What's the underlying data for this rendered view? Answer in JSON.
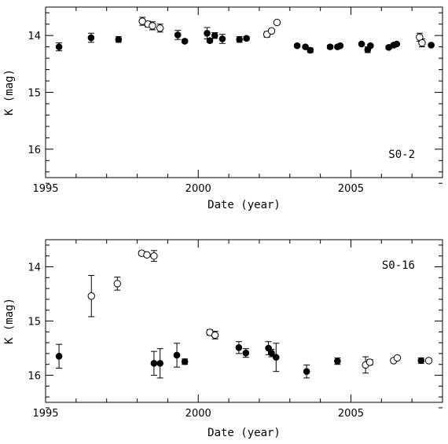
{
  "chart_data": [
    {
      "type": "scatter",
      "star_label": "S0-2",
      "xlabel": "Date (year)",
      "ylabel": "K (mag)",
      "xlim": [
        1995,
        2008
      ],
      "ylim": [
        13.5,
        16.5
      ],
      "y_inverted": true,
      "xticks": [
        1995,
        2000,
        2005
      ],
      "yticks": [
        14,
        15,
        16
      ],
      "series": [
        {
          "marker": "filled",
          "points": [
            {
              "x": 1995.44,
              "y": 14.2,
              "err": 0.07
            },
            {
              "x": 1996.49,
              "y": 14.04,
              "err": 0.08
            },
            {
              "x": 1997.39,
              "y": 14.07,
              "err": 0.05
            },
            {
              "x": 1999.33,
              "y": 13.99,
              "err": 0.08
            },
            {
              "x": 1999.56,
              "y": 14.1,
              "err": 0.03
            },
            {
              "x": 2000.29,
              "y": 13.96,
              "err": 0.1
            },
            {
              "x": 2000.38,
              "y": 14.09,
              "err": 0.03
            },
            {
              "x": 2000.54,
              "y": 14.0,
              "err": 0.05
            },
            {
              "x": 2000.79,
              "y": 14.06,
              "err": 0.08
            },
            {
              "x": 2001.35,
              "y": 14.07,
              "err": 0.05
            },
            {
              "x": 2001.58,
              "y": 14.05,
              "err": 0.03
            },
            {
              "x": 2003.24,
              "y": 14.18,
              "err": 0.02
            },
            {
              "x": 2003.51,
              "y": 14.2,
              "err": 0.02
            },
            {
              "x": 2003.67,
              "y": 14.26,
              "err": 0.04
            },
            {
              "x": 2004.32,
              "y": 14.2,
              "err": 0.03
            },
            {
              "x": 2004.56,
              "y": 14.2,
              "err": 0.02
            },
            {
              "x": 2004.65,
              "y": 14.18,
              "err": 0.02
            },
            {
              "x": 2005.35,
              "y": 14.15,
              "err": 0.02
            },
            {
              "x": 2005.55,
              "y": 14.25,
              "err": 0.05
            },
            {
              "x": 2005.64,
              "y": 14.18,
              "err": 0.02
            },
            {
              "x": 2006.24,
              "y": 14.21,
              "err": 0.03
            },
            {
              "x": 2006.4,
              "y": 14.17,
              "err": 0.03
            },
            {
              "x": 2006.5,
              "y": 14.15,
              "err": 0.02
            },
            {
              "x": 2007.63,
              "y": 14.17,
              "err": 0.02
            }
          ]
        },
        {
          "marker": "open",
          "points": [
            {
              "x": 1998.17,
              "y": 13.75,
              "err": 0.07
            },
            {
              "x": 1998.35,
              "y": 13.8,
              "err": 0.05
            },
            {
              "x": 1998.5,
              "y": 13.83,
              "err": 0.07
            },
            {
              "x": 1998.75,
              "y": 13.87,
              "err": 0.07
            },
            {
              "x": 2002.25,
              "y": 13.98,
              "err": 0.05
            },
            {
              "x": 2002.4,
              "y": 13.92,
              "err": 0.03
            },
            {
              "x": 2002.58,
              "y": 13.77,
              "err": 0.03
            },
            {
              "x": 2007.25,
              "y": 14.03,
              "err": 0.07
            },
            {
              "x": 2007.33,
              "y": 14.13,
              "err": 0.07
            }
          ]
        }
      ]
    },
    {
      "type": "scatter",
      "star_label": "S0-16",
      "xlabel": "Date (year)",
      "ylabel": "K (mag)",
      "xlim": [
        1995,
        2008
      ],
      "ylim": [
        13.5,
        16.5
      ],
      "y_inverted": true,
      "xticks": [
        1995,
        2000,
        2005
      ],
      "yticks": [
        14,
        15,
        16
      ],
      "series": [
        {
          "marker": "filled",
          "points": [
            {
              "x": 1995.44,
              "y": 15.65,
              "err": 0.22
            },
            {
              "x": 1998.55,
              "y": 15.78,
              "err": 0.22
            },
            {
              "x": 1998.75,
              "y": 15.78,
              "err": 0.27
            },
            {
              "x": 1999.3,
              "y": 15.63,
              "err": 0.22
            },
            {
              "x": 1999.56,
              "y": 15.75,
              "err": 0.05
            },
            {
              "x": 2001.33,
              "y": 15.49,
              "err": 0.11
            },
            {
              "x": 2001.56,
              "y": 15.59,
              "err": 0.08
            },
            {
              "x": 2002.3,
              "y": 15.5,
              "err": 0.12
            },
            {
              "x": 2002.4,
              "y": 15.59,
              "err": 0.07
            },
            {
              "x": 2002.55,
              "y": 15.67,
              "err": 0.26
            },
            {
              "x": 2003.55,
              "y": 15.93,
              "err": 0.12
            },
            {
              "x": 2004.56,
              "y": 15.74,
              "err": 0.06
            },
            {
              "x": 2007.3,
              "y": 15.73,
              "err": 0.05
            }
          ]
        },
        {
          "marker": "open",
          "points": [
            {
              "x": 1996.5,
              "y": 14.54,
              "err": 0.38
            },
            {
              "x": 1997.35,
              "y": 14.31,
              "err": 0.12
            },
            {
              "x": 1998.15,
              "y": 13.75,
              "err": 0.04
            },
            {
              "x": 1998.32,
              "y": 13.78,
              "err": 0.03
            },
            {
              "x": 1998.55,
              "y": 13.8,
              "err": 0.1
            },
            {
              "x": 2000.38,
              "y": 15.21,
              "err": 0.05
            },
            {
              "x": 2000.55,
              "y": 15.26,
              "err": 0.07
            },
            {
              "x": 2005.48,
              "y": 15.81,
              "err": 0.15
            },
            {
              "x": 2005.62,
              "y": 15.76,
              "err": 0.05
            },
            {
              "x": 2006.4,
              "y": 15.73,
              "err": 0.03
            },
            {
              "x": 2006.52,
              "y": 15.68,
              "err": 0.03
            },
            {
              "x": 2007.55,
              "y": 15.73,
              "err": 0.03
            }
          ]
        }
      ]
    }
  ]
}
